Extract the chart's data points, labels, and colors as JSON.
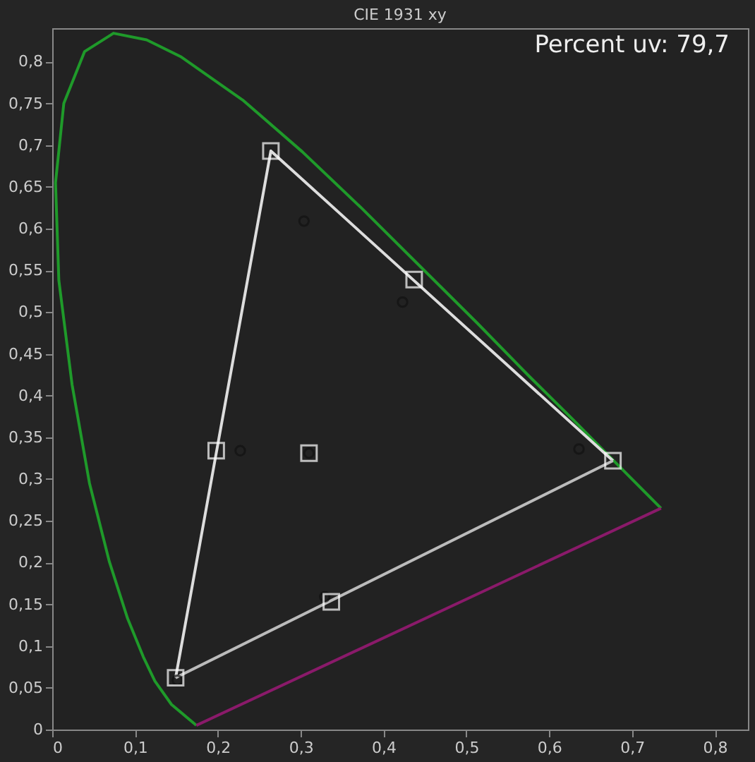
{
  "chart_data": {
    "type": "scatter",
    "title": "CIE 1931 xy",
    "annotations": [
      "Percent uv: 79,7"
    ],
    "xlim": [
      0,
      0.84
    ],
    "ylim": [
      0,
      0.84
    ],
    "xticks": [
      0,
      {
        "value": 0.1,
        "label": "0,1"
      },
      {
        "value": 0.2,
        "label": "0,2"
      },
      {
        "value": 0.3,
        "label": "0,3"
      },
      {
        "value": 0.4,
        "label": "0,4"
      },
      {
        "value": 0.5,
        "label": "0,5"
      },
      {
        "value": 0.6,
        "label": "0,6"
      },
      {
        "value": 0.7,
        "label": "0,7"
      },
      {
        "value": 0.8,
        "label": "0,8"
      }
    ],
    "yticks": [
      0,
      {
        "value": 0.05,
        "label": "0,05"
      },
      {
        "value": 0.1,
        "label": "0,1"
      },
      {
        "value": 0.15,
        "label": "0,15"
      },
      {
        "value": 0.2,
        "label": "0,2"
      },
      {
        "value": 0.25,
        "label": "0,25"
      },
      {
        "value": 0.3,
        "label": "0,3"
      },
      {
        "value": 0.35,
        "label": "0,35"
      },
      {
        "value": 0.4,
        "label": "0,4"
      },
      {
        "value": 0.45,
        "label": "0,45"
      },
      {
        "value": 0.5,
        "label": "0,5"
      },
      {
        "value": 0.55,
        "label": "0,55"
      },
      {
        "value": 0.6,
        "label": "0,6"
      },
      {
        "value": 0.65,
        "label": "0,65"
      },
      {
        "value": 0.7,
        "label": "0,7"
      },
      {
        "value": 0.75,
        "label": "0,75"
      },
      {
        "value": 0.8,
        "label": "0,8"
      }
    ],
    "grid": false,
    "series": [
      {
        "type": "line",
        "color": "#1f9a2a",
        "marker": "none",
        "x": [
          0.174,
          0.144,
          0.124,
          0.11,
          0.091,
          0.069,
          0.045,
          0.024,
          0.008,
          0.004,
          0.014,
          0.039,
          0.074,
          0.114,
          0.155,
          0.23,
          0.302,
          0.373,
          0.444,
          0.513,
          0.575,
          0.627,
          0.692,
          0.719,
          0.735
        ],
        "values": [
          0.005,
          0.03,
          0.058,
          0.087,
          0.133,
          0.201,
          0.295,
          0.413,
          0.538,
          0.655,
          0.75,
          0.812,
          0.834,
          0.826,
          0.806,
          0.754,
          0.692,
          0.625,
          0.555,
          0.487,
          0.424,
          0.373,
          0.308,
          0.281,
          0.265
        ]
      },
      {
        "type": "line",
        "color": "#8a1a6a",
        "marker": "none",
        "x": [
          0.174,
          0.735
        ],
        "values": [
          0.005,
          0.265
        ]
      },
      {
        "type": "line",
        "color": "#dddddd",
        "marker": "none",
        "x": [
          0.677,
          0.264,
          0.149
        ],
        "values": [
          0.322,
          0.693,
          0.062
        ]
      },
      {
        "type": "line",
        "color": "#bbbbbb",
        "marker": "none",
        "x": [
          0.149,
          0.677
        ],
        "values": [
          0.062,
          0.322
        ]
      },
      {
        "color": "#111111",
        "marker": "circle",
        "x": [
          0.304,
          0.423,
          0.636,
          0.329,
          0.151,
          0.227,
          0.31
        ],
        "values": [
          0.609,
          0.512,
          0.336,
          0.159,
          0.059,
          0.334,
          0.331
        ]
      },
      {
        "color": "#ffffff",
        "marker": "square",
        "x": [
          0.264,
          0.437,
          0.677,
          0.337,
          0.149,
          0.198,
          0.31
        ],
        "values": [
          0.693,
          0.539,
          0.322,
          0.153,
          0.062,
          0.334,
          0.331
        ]
      }
    ]
  }
}
